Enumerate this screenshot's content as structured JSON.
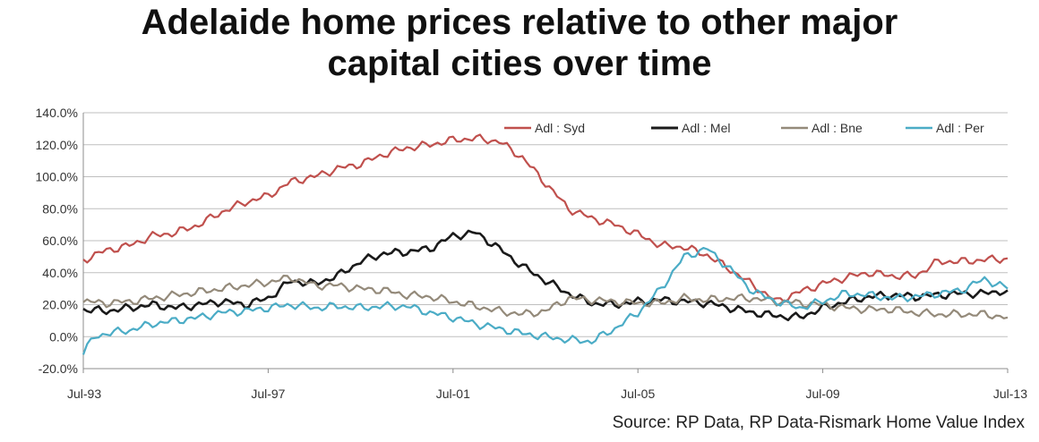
{
  "title_lines": [
    "Adelaide home prices relative to other major",
    "capital cities over time"
  ],
  "source": "Source: RP Data, RP Data-Rismark Home Value Index",
  "chart_data": {
    "type": "line",
    "title": "Adelaide home prices relative to other major capital cities over time",
    "xlabel": "",
    "ylabel": "",
    "x_range": [
      1993.5,
      2013.5
    ],
    "ylim": [
      -20,
      140
    ],
    "y_ticks": [
      -20,
      0,
      20,
      40,
      60,
      80,
      100,
      120,
      140
    ],
    "y_tick_labels": [
      "-20.0%",
      "0.0%",
      "20.0%",
      "40.0%",
      "60.0%",
      "80.0%",
      "100.0%",
      "120.0%",
      "140.0%"
    ],
    "x_ticks": [
      1993.5,
      1997.5,
      2001.5,
      2005.5,
      2009.5,
      2013.5
    ],
    "x_tick_labels": [
      "Jul-93",
      "Jul-97",
      "Jul-01",
      "Jul-05",
      "Jul-09",
      "Jul-13"
    ],
    "grid": "horizontal",
    "legend_position": "top-right",
    "series": [
      {
        "name": "Adl : Syd",
        "color": "#c0504d",
        "x": [
          1993.5,
          1994.0,
          1994.5,
          1995.0,
          1995.5,
          1996.0,
          1996.5,
          1997.0,
          1997.5,
          1998.0,
          1998.5,
          1999.0,
          1999.5,
          2000.0,
          2000.5,
          2001.0,
          2001.5,
          2002.0,
          2002.5,
          2003.0,
          2003.5,
          2004.0,
          2004.5,
          2005.0,
          2005.5,
          2006.0,
          2006.5,
          2007.0,
          2007.5,
          2008.0,
          2008.5,
          2009.0,
          2009.5,
          2010.0,
          2010.5,
          2011.0,
          2011.5,
          2012.0,
          2012.5,
          2013.0,
          2013.5
        ],
        "y": [
          48,
          54,
          57,
          63,
          65,
          70,
          78,
          84,
          88,
          97,
          100,
          105,
          108,
          114,
          118,
          120,
          123,
          124,
          122,
          112,
          96,
          80,
          74,
          70,
          64,
          57,
          56,
          51,
          42,
          32,
          22,
          28,
          33,
          37,
          40,
          38,
          38,
          47,
          47,
          48,
          49
        ]
      },
      {
        "name": "Adl : Mel",
        "color": "#1a1a1a",
        "x": [
          1993.5,
          1994.0,
          1994.5,
          1995.0,
          1995.5,
          1996.0,
          1996.5,
          1997.0,
          1997.5,
          1998.0,
          1998.5,
          1999.0,
          1999.5,
          2000.0,
          2000.5,
          2001.0,
          2001.5,
          2002.0,
          2002.5,
          2003.0,
          2003.5,
          2004.0,
          2004.5,
          2005.0,
          2005.5,
          2006.0,
          2006.5,
          2007.0,
          2007.5,
          2008.0,
          2008.5,
          2009.0,
          2009.5,
          2010.0,
          2010.5,
          2011.0,
          2011.5,
          2012.0,
          2012.5,
          2013.0,
          2013.5
        ],
        "y": [
          17,
          16,
          18,
          20,
          18,
          20,
          22,
          20,
          24,
          35,
          33,
          38,
          47,
          52,
          53,
          55,
          63,
          65,
          55,
          44,
          35,
          27,
          21,
          20,
          22,
          23,
          22,
          21,
          18,
          15,
          13,
          12,
          18,
          22,
          25,
          26,
          25,
          26,
          27,
          27,
          29
        ]
      },
      {
        "name": "Adl : Bne",
        "color": "#948a7a",
        "x": [
          1993.5,
          1994.0,
          1994.5,
          1995.0,
          1995.5,
          1996.0,
          1996.5,
          1997.0,
          1997.5,
          1998.0,
          1998.5,
          1999.0,
          1999.5,
          2000.0,
          2000.5,
          2001.0,
          2001.5,
          2002.0,
          2002.5,
          2003.0,
          2003.5,
          2004.0,
          2004.5,
          2005.0,
          2005.5,
          2006.0,
          2006.5,
          2007.0,
          2007.5,
          2008.0,
          2008.5,
          2009.0,
          2009.5,
          2010.0,
          2010.5,
          2011.0,
          2011.5,
          2012.0,
          2012.5,
          2013.0,
          2013.5
        ],
        "y": [
          22,
          21,
          22,
          24,
          26,
          28,
          30,
          32,
          34,
          37,
          32,
          32,
          30,
          29,
          26,
          25,
          22,
          19,
          16,
          14,
          16,
          24,
          23,
          22,
          21,
          21,
          24,
          23,
          24,
          24,
          22,
          21,
          20,
          18,
          17,
          17,
          15,
          14,
          14,
          14,
          12
        ]
      },
      {
        "name": "Adl : Per",
        "color": "#4bacc6",
        "x": [
          1993.5,
          1993.75,
          1994.0,
          1994.5,
          1995.0,
          1995.5,
          1996.0,
          1996.5,
          1997.0,
          1997.5,
          1998.0,
          1998.5,
          1999.0,
          1999.5,
          2000.0,
          2000.5,
          2001.0,
          2001.5,
          2002.0,
          2002.5,
          2003.0,
          2003.5,
          2004.0,
          2004.5,
          2005.0,
          2005.5,
          2006.0,
          2006.5,
          2007.0,
          2007.5,
          2008.0,
          2008.5,
          2009.0,
          2009.5,
          2010.0,
          2010.5,
          2011.0,
          2011.5,
          2012.0,
          2012.5,
          2013.0,
          2013.5
        ],
        "y": [
          -10,
          0,
          2,
          4,
          8,
          10,
          12,
          15,
          16,
          18,
          20,
          18,
          19,
          18,
          19,
          19,
          15,
          12,
          8,
          5,
          2,
          0,
          -2,
          -3,
          5,
          15,
          30,
          50,
          55,
          42,
          28,
          22,
          18,
          22,
          27,
          26,
          24,
          25,
          27,
          29,
          36,
          30
        ]
      }
    ]
  }
}
